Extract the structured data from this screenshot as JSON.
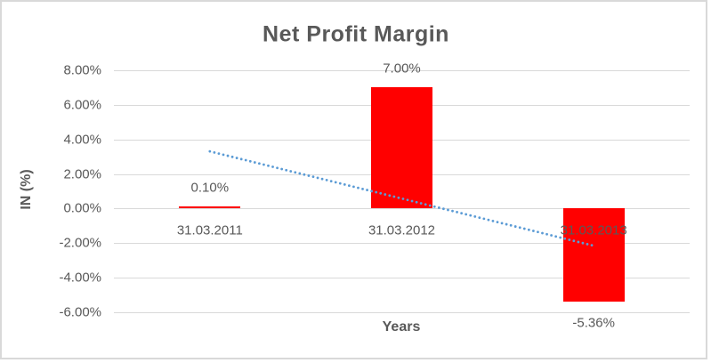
{
  "chart_data": {
    "type": "bar",
    "title": "Net Profit Margin",
    "xlabel": "Years",
    "ylabel": "IN (%)",
    "categories": [
      "31.03.2011",
      "31.03.2012",
      "31.03.2013"
    ],
    "series": [
      {
        "name": "Net Profit Margin",
        "values": [
          0.1,
          7.0,
          -5.36
        ],
        "data_labels": [
          "0.10%",
          "7.00%",
          "-5.36%"
        ]
      }
    ],
    "y_ticks": [
      8,
      6,
      4,
      2,
      0,
      -2,
      -4,
      -6
    ],
    "y_tick_labels": [
      "8.00%",
      "6.00%",
      "4.00%",
      "2.00%",
      "0.00%",
      "-2.00%",
      "-4.00%",
      "-6.00%"
    ],
    "ylim": [
      -6,
      8
    ],
    "grid": true,
    "legend": false,
    "trendline": {
      "type": "linear",
      "style": "dotted",
      "start_value": 3.31,
      "end_value": -2.15
    },
    "colors": {
      "bar": "#ff0000",
      "trendline": "#5b9bd5",
      "gridline": "#d9d9d9",
      "text": "#595959",
      "frame_border": "#d9d9d9",
      "background": "#ffffff"
    }
  }
}
